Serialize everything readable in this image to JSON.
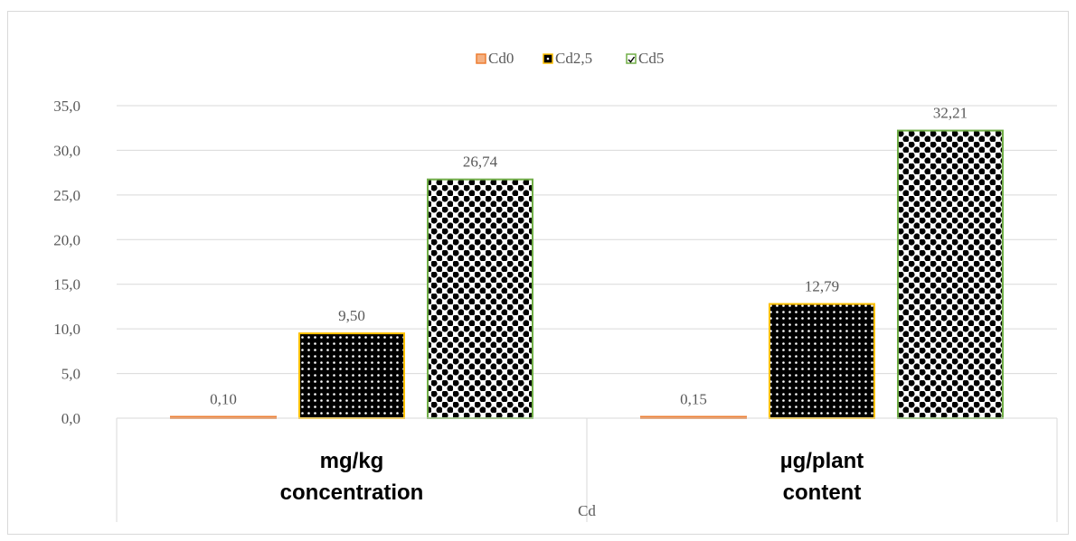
{
  "chart_data": {
    "type": "bar",
    "categories": [
      [
        "mg/kg",
        "concentration"
      ],
      [
        "µg/plant",
        "content"
      ]
    ],
    "group_label": "Cd",
    "series": [
      {
        "name": "Cd0",
        "values": [
          0.1,
          0.15
        ],
        "labels": [
          "0,10",
          "0,15"
        ],
        "color": "#f4b183",
        "edge": "#ed7d31"
      },
      {
        "name": "Cd2,5",
        "values": [
          9.5,
          12.79
        ],
        "labels": [
          "9,50",
          "12,79"
        ],
        "color": "#000000",
        "edge": "#ffc000"
      },
      {
        "name": "Cd5",
        "values": [
          26.74,
          32.21
        ],
        "labels": [
          "26,74",
          "32,21"
        ],
        "color": "#000000",
        "edge": "#70ad47"
      }
    ],
    "ylim": [
      0,
      35
    ],
    "yticks": [
      "0,0",
      "5,0",
      "10,0",
      "15,0",
      "20,0",
      "25,0",
      "30,0",
      "35,0"
    ],
    "legend_position": "top",
    "grid": true
  }
}
